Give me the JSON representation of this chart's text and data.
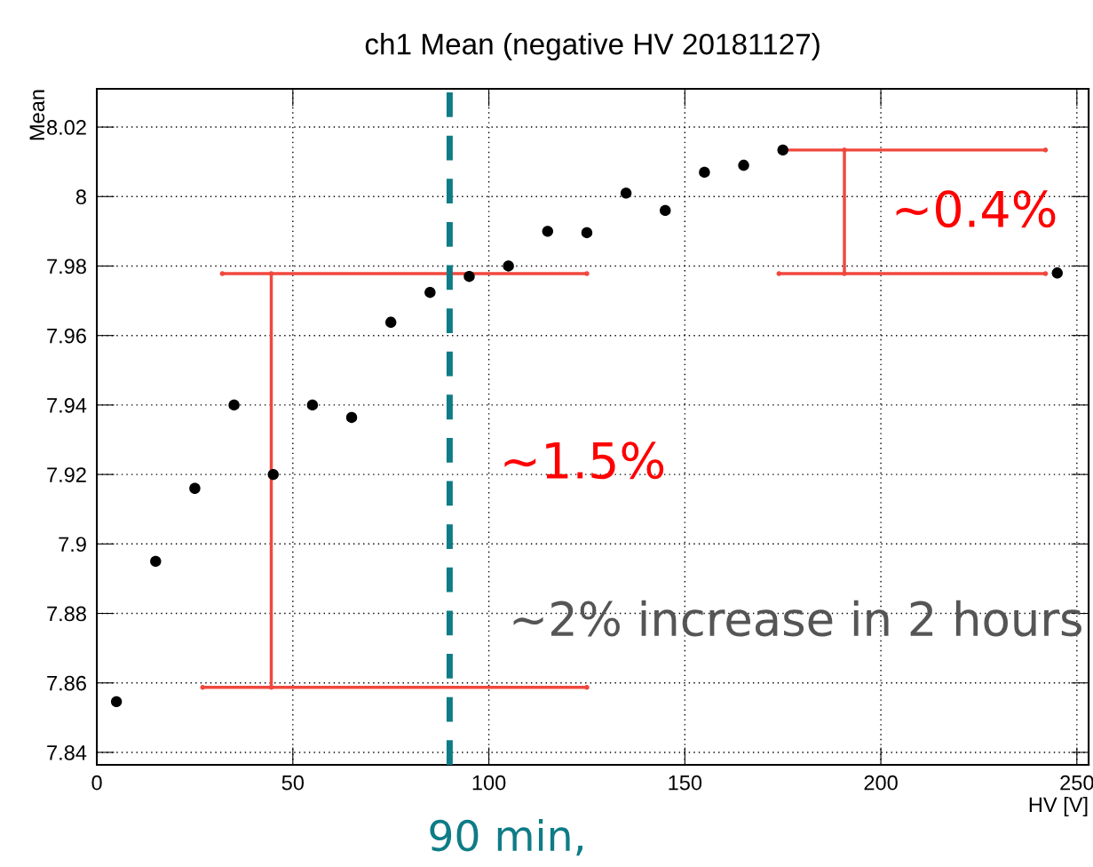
{
  "chart_data": {
    "type": "scatter",
    "title": "ch1 Mean (negative HV 20181127)",
    "xlabel": "HV [V]",
    "ylabel": "Mean",
    "xlim": [
      0,
      253
    ],
    "ylim": [
      7.8364,
      8.031
    ],
    "xticks": [
      0,
      50,
      100,
      150,
      200,
      250
    ],
    "yticks": [
      7.84,
      7.86,
      7.88,
      7.9,
      7.92,
      7.94,
      7.96,
      7.98,
      8,
      8.02
    ],
    "grid": true,
    "marker": "circle",
    "series": [
      {
        "color": "#000000",
        "x": [
          5,
          15,
          25,
          35,
          45,
          55,
          65,
          75,
          85,
          95,
          105,
          115,
          125,
          135,
          145,
          155,
          165,
          175,
          245
        ],
        "values": [
          7.8546,
          7.895,
          7.916,
          7.94,
          7.92,
          7.94,
          7.9364,
          7.9638,
          7.9724,
          7.977,
          7.98,
          7.99,
          7.9896,
          8.001,
          7.996,
          8.007,
          8.009,
          8.0134,
          7.978
        ]
      },
      {
        "type": "line",
        "color": "#f0483e",
        "x": [
          32,
          125
        ],
        "values": [
          7.9778,
          7.9778
        ]
      },
      {
        "type": "line",
        "color": "#f0483e",
        "x": [
          27,
          125
        ],
        "values": [
          7.8587,
          7.8587
        ]
      },
      {
        "type": "line",
        "color": "#f0483e",
        "x": [
          175,
          242
        ],
        "values": [
          8.0134,
          8.0134
        ]
      },
      {
        "type": "line",
        "color": "#f0483e",
        "x": [
          174,
          242
        ],
        "values": [
          7.9778,
          7.9778
        ]
      },
      {
        "type": "line",
        "color": "#f0483e",
        "x": [
          44.5,
          44.5
        ],
        "values": [
          7.8587,
          7.9778
        ]
      },
      {
        "type": "line",
        "color": "#f0483e",
        "x": [
          190.7,
          190.7
        ],
        "values": [
          7.9778,
          8.0134
        ]
      }
    ],
    "ref_lines": [
      {
        "axis": "x",
        "value": 90,
        "label": "90 min,",
        "color": "#0e7c86",
        "line_style": "dashed"
      }
    ],
    "annotations": [
      "~1.5%",
      "~0.4%",
      "~2% increase in 2 hours"
    ]
  }
}
